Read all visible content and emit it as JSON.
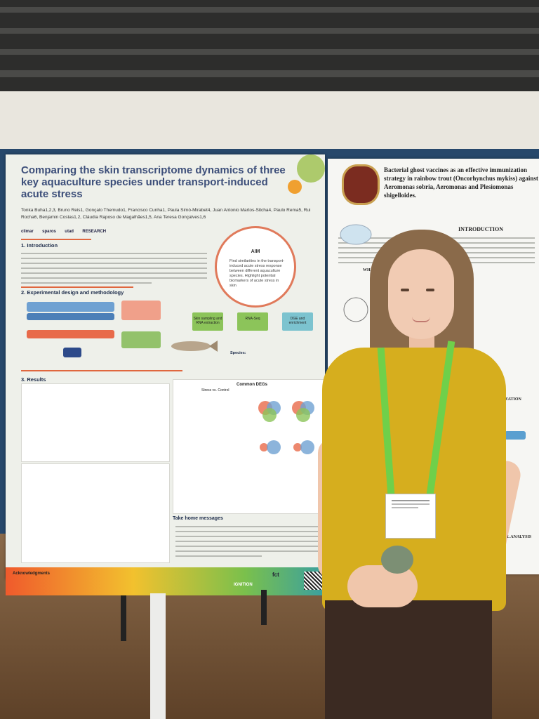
{
  "poster_left": {
    "title": "Comparing the skin transcriptome dynamics of three key aquaculture species under transport-induced acute stress",
    "authors": "Tonka Buha1,2,3, Bruno Reis1, Gonçalo Themudo1, Francisco Cunha1, Paula Simó-Mirabet4, Juan Antonio Martos-Sitcha4, Paulo Rema5, Rui Rocha6, Benjamin Costas1,2, Cláudia Raposo de Magalhães1,5, Ana Teresa Gonçalves1,6",
    "logos": [
      "climar",
      "sparos",
      "utad",
      "RESEARCH"
    ],
    "section_intro": "1. Introduction",
    "section_design": "2. Experimental design and methodology",
    "section_results": "3. Results",
    "aim_heading": "AIM",
    "aim_text": "Find similarities in the transport-induced acute stress response between different aquaculture species. Highlight potential biomarkers of acute stress in skin",
    "step_labels": [
      "Skin sampling and RNA extraction",
      "RNA-Seq",
      "DGE and enrichment"
    ],
    "species_label": "Species:",
    "common_degs": "Common DEGs",
    "stress_vs_control": "Stress vs. Control",
    "take_home_heading": "Take home messages",
    "acknowledgments_heading": "Acknowledgments",
    "footer_logos": [
      "IGNITION",
      "fct"
    ]
  },
  "poster_right": {
    "title": "Bacterial ghost vaccines as an effective immunization strategy in rainbow trout (Oncorhynchus mykiss) against Aeromonas sobria, Aeromonas and Plesiomonas shigelloides.",
    "intro_heading": "INTRODUCTION",
    "what_heading": "WHAT ARE",
    "immunization_heading": "IMMUNIZATION",
    "statistical_heading": "STATISTICAL ANALYSIS"
  },
  "colors": {
    "title_blue": "#3d4f7a",
    "section_orange": "#e0673f",
    "board_blue": "#27486b",
    "shirt_yellow": "#d6ae1e",
    "lanyard_green": "#6fd04a"
  }
}
